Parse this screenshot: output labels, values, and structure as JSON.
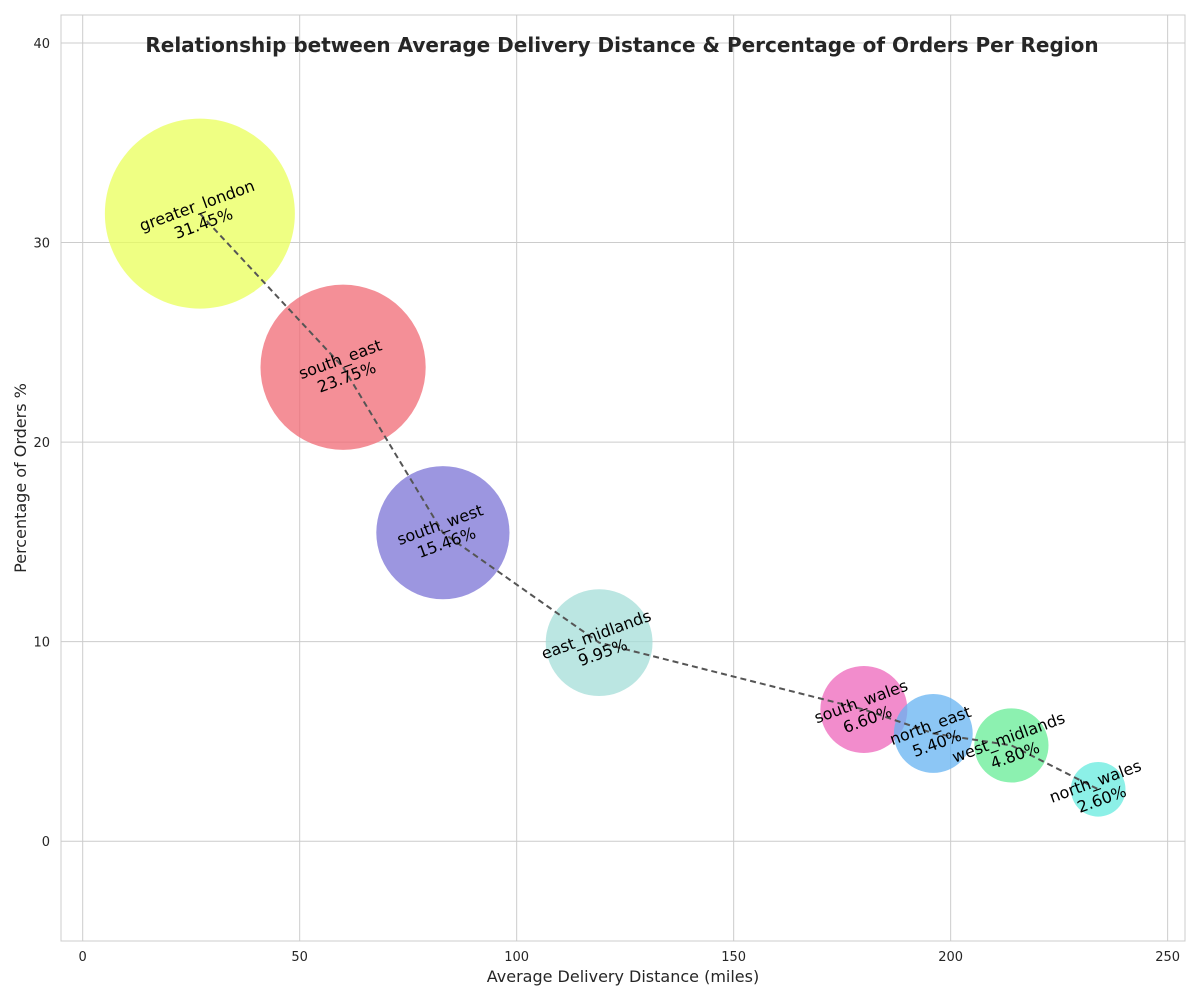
{
  "chart_data": {
    "type": "scatter",
    "title": "Relationship between Average Delivery Distance & Percentage of Orders Per Region",
    "xlabel": "Average Delivery Distance (miles)",
    "ylabel": "Percentage of Orders %",
    "xlim": [
      -5,
      254
    ],
    "ylim": [
      -5,
      41.4
    ],
    "xticks": [
      0,
      50,
      100,
      150,
      200,
      250
    ],
    "yticks": [
      0,
      10,
      20,
      30,
      40
    ],
    "grid": true,
    "connector_line": {
      "style": "dashed",
      "color": "#555555"
    },
    "points": [
      {
        "region": "greater_london",
        "label": "31.45%",
        "x": 27,
        "y": 31.45,
        "color": "#e9ff5a"
      },
      {
        "region": "south_east",
        "label": "23.75%",
        "x": 60,
        "y": 23.75,
        "color": "#f06a74"
      },
      {
        "region": "south_west",
        "label": "15.46%",
        "x": 83,
        "y": 15.46,
        "color": "#7b73d6"
      },
      {
        "region": "east_midlands",
        "label": "9.95%",
        "x": 119,
        "y": 9.95,
        "color": "#a4ddd8"
      },
      {
        "region": "south_wales",
        "label": "6.60%",
        "x": 180,
        "y": 6.6,
        "color": "#ee66bb"
      },
      {
        "region": "north_east",
        "label": "5.40%",
        "x": 196,
        "y": 5.4,
        "color": "#66b3f2"
      },
      {
        "region": "west_midlands",
        "label": "4.80%",
        "x": 214,
        "y": 4.8,
        "color": "#66ec96"
      },
      {
        "region": "north_wales",
        "label": "2.60%",
        "x": 234,
        "y": 2.6,
        "color": "#66ebdf"
      }
    ]
  }
}
